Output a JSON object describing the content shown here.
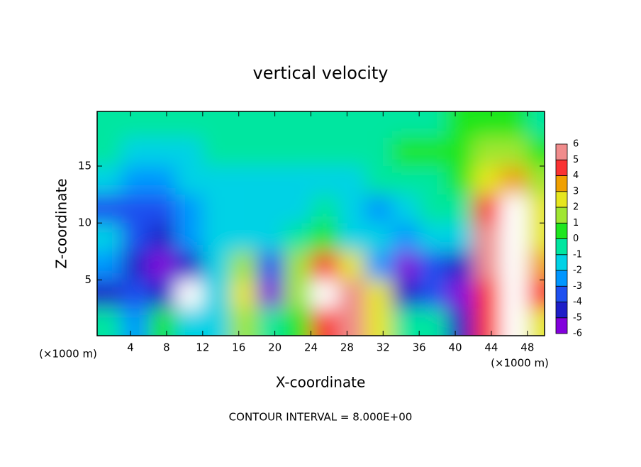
{
  "chart_data": {
    "type": "heatmap",
    "title": "vertical velocity",
    "x_label": "X-coordinate",
    "y_label": "Z-coordinate",
    "x_unit_label": "(×1000 m)",
    "footnote": "CONTOUR INTERVAL = 8.000E+00",
    "x": [
      1.5,
      4.5,
      7.5,
      10.5,
      13.5,
      16.5,
      19.5,
      22.5,
      25.5,
      28.5,
      31.5,
      34.5,
      37.5,
      40.5,
      43.5,
      46.5,
      49.5
    ],
    "z": [
      1.25,
      3.75,
      6.25,
      8.75,
      11.25,
      13.75,
      16.25,
      18.75
    ],
    "values": [
      [
        0,
        -2,
        1,
        -1,
        -1,
        2,
        0,
        1,
        5,
        6,
        3,
        0,
        0,
        -4,
        5,
        7,
        3
      ],
      [
        -4,
        -3,
        -4,
        -6.5,
        -1,
        3,
        -5,
        2,
        7,
        6,
        3,
        -4,
        -3,
        -5,
        5,
        8,
        5
      ],
      [
        -2,
        -4,
        -5,
        -4,
        -1,
        2,
        -3,
        2,
        5,
        3,
        -2,
        -5,
        -3,
        -4,
        6,
        8,
        4
      ],
      [
        -1,
        -3,
        -4,
        -2,
        -1,
        -1,
        -1,
        0,
        1,
        -1,
        -1,
        -2,
        -1,
        -1,
        6,
        7,
        3
      ],
      [
        -3,
        -3,
        -3,
        -2,
        -1,
        -1,
        -1,
        -1,
        0,
        -1,
        -2,
        -1,
        0,
        0,
        5,
        7,
        3
      ],
      [
        -1,
        -2,
        -2,
        -1,
        -1,
        -1,
        -1,
        -1,
        -1,
        -1,
        0,
        0,
        0,
        1,
        3,
        4,
        2
      ],
      [
        0,
        -1,
        -1,
        -1,
        0,
        0,
        0,
        0,
        0,
        0,
        0,
        1,
        1,
        1,
        2,
        2,
        1
      ],
      [
        0,
        0,
        0,
        0,
        0,
        0,
        0,
        0,
        0,
        0,
        0,
        0,
        0,
        1,
        1,
        1,
        0
      ]
    ],
    "xlim": [
      0.3,
      49.9
    ],
    "ylim": [
      0.1,
      19.8
    ],
    "xticks": [
      4,
      8,
      12,
      16,
      20,
      24,
      28,
      32,
      36,
      40,
      44,
      48
    ],
    "yticks": [
      5,
      10,
      15
    ],
    "levels": [
      -6,
      -5,
      -4,
      -3,
      -2,
      -1,
      0,
      1,
      2,
      3,
      4,
      5,
      6
    ],
    "colors": [
      "#8200dc",
      "#1e1ec8",
      "#1e50f0",
      "#0096ff",
      "#00d2e6",
      "#00e6a0",
      "#1ee61e",
      "#a0e632",
      "#e6e61e",
      "#f0a000",
      "#fa3232",
      "#f08c8c"
    ],
    "out_of_range_color": "#ffffff"
  }
}
